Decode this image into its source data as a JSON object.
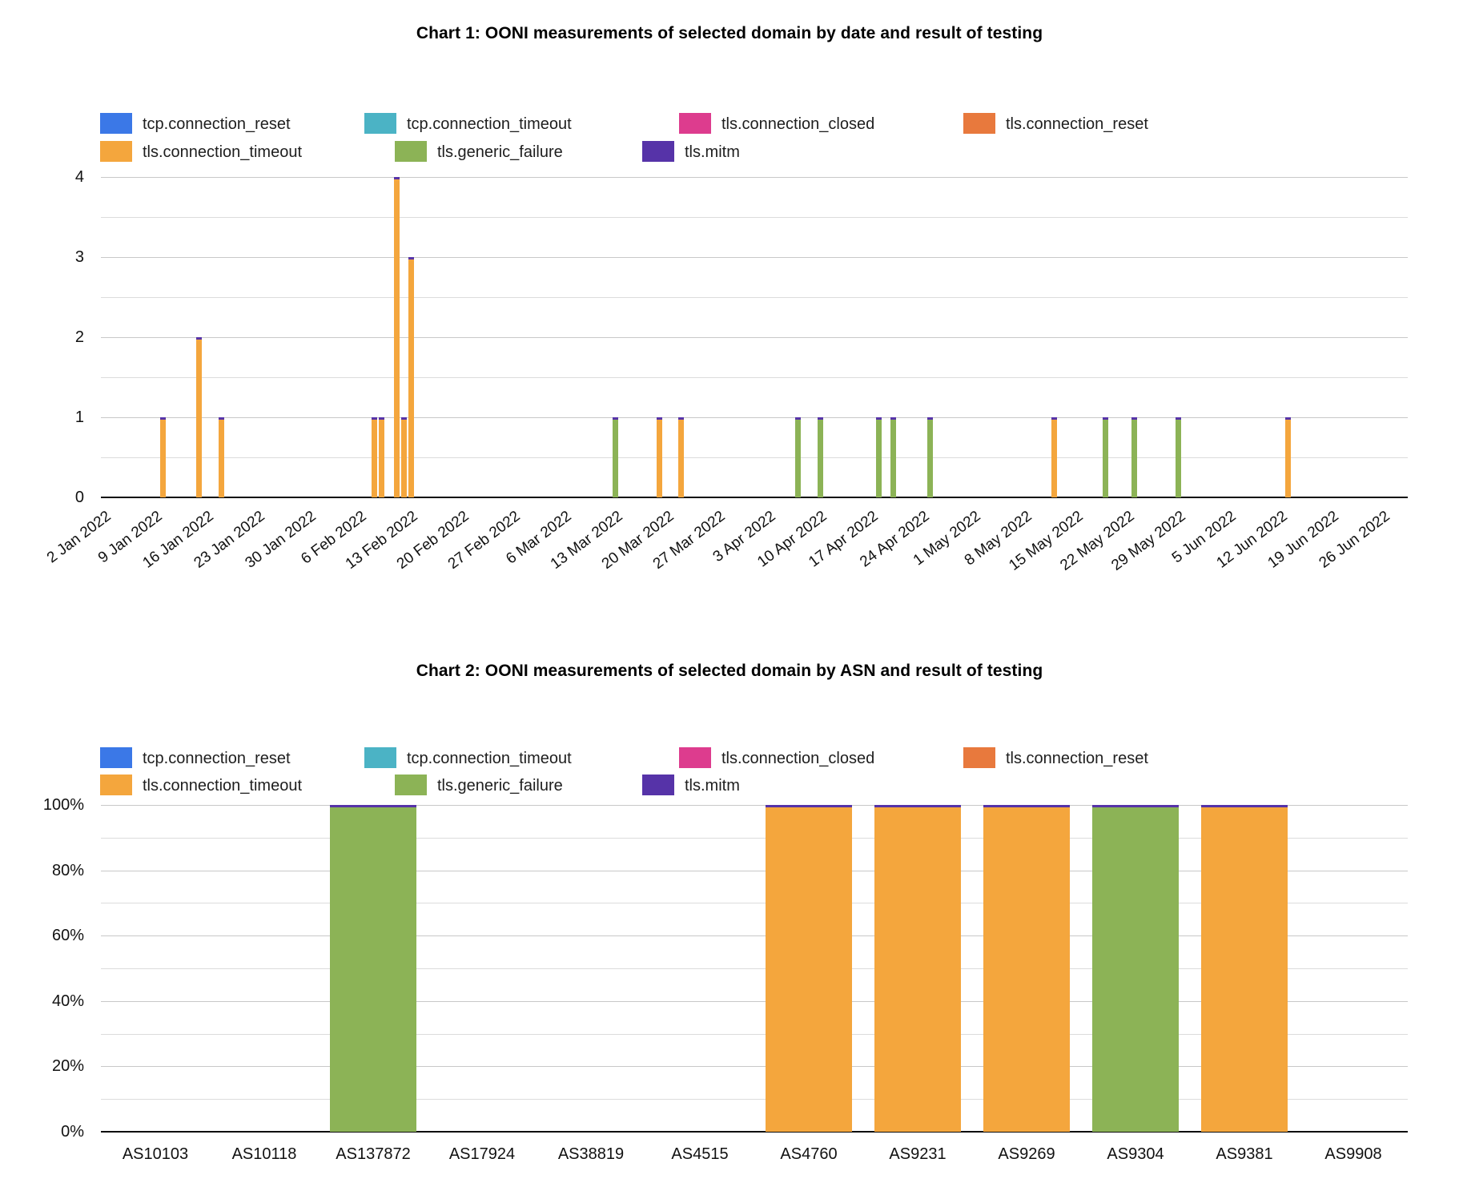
{
  "page_bg": "#ffffff",
  "palette": {
    "tcp.connection_reset": "#3B78E7",
    "tcp.connection_timeout": "#4BB3C5",
    "tls.connection_closed": "#DD3C8E",
    "tls.connection_reset": "#E8793D",
    "tls.connection_timeout": "#F4A63D",
    "tls.generic_failure": "#8CB356",
    "tls.mitm": "#5633A8"
  },
  "legend_rows": [
    [
      "tcp.connection_reset",
      "tcp.connection_timeout",
      "tls.connection_closed",
      "tls.connection_reset"
    ],
    [
      "tls.connection_timeout",
      "tls.generic_failure",
      "tls.mitm"
    ]
  ],
  "chart_data": [
    {
      "type": "bar",
      "stacked": true,
      "title": "Chart 1: OONI measurements of selected domain by date and result of testing",
      "legend_position": "top-left-two-rows",
      "grid": true,
      "x_axis": {
        "kind": "date",
        "start": "2022-01-02",
        "tick_interval_days": 7,
        "tick_labels": [
          "2 Jan 2022",
          "9 Jan 2022",
          "16 Jan 2022",
          "23 Jan 2022",
          "30 Jan 2022",
          "6 Feb 2022",
          "13 Feb 2022",
          "20 Feb 2022",
          "27 Feb 2022",
          "6 Mar 2022",
          "13 Mar 2022",
          "20 Mar 2022",
          "27 Mar 2022",
          "3 Apr 2022",
          "10 Apr 2022",
          "17 Apr 2022",
          "24 Apr 2022",
          "1 May 2022",
          "8 May 2022",
          "15 May 2022",
          "22 May 2022",
          "29 May 2022",
          "5 Jun 2022",
          "12 Jun 2022",
          "19 Jun 2022",
          "26 Jun 2022"
        ]
      },
      "y_axis": {
        "min": 0,
        "max": 4,
        "tick_labels": [
          "0",
          "1",
          "2",
          "3",
          "4"
        ],
        "minor_step": 0.5
      },
      "bars": [
        {
          "date": "2022-01-10",
          "series": "tls.connection_timeout",
          "value": 1
        },
        {
          "date": "2022-01-15",
          "series": "tls.connection_timeout",
          "value": 2
        },
        {
          "date": "2022-01-18",
          "series": "tls.connection_timeout",
          "value": 1
        },
        {
          "date": "2022-02-08",
          "series": "tls.connection_timeout",
          "value": 1
        },
        {
          "date": "2022-02-09",
          "series": "tls.connection_timeout",
          "value": 1
        },
        {
          "date": "2022-02-11",
          "series": "tls.connection_timeout",
          "value": 4
        },
        {
          "date": "2022-02-12",
          "series": "tls.connection_timeout",
          "value": 1
        },
        {
          "date": "2022-02-13",
          "series": "tls.connection_timeout",
          "value": 3
        },
        {
          "date": "2022-03-13",
          "series": "tls.generic_failure",
          "value": 1
        },
        {
          "date": "2022-03-19",
          "series": "tls.connection_timeout",
          "value": 1
        },
        {
          "date": "2022-03-22",
          "series": "tls.connection_timeout",
          "value": 1
        },
        {
          "date": "2022-04-07",
          "series": "tls.generic_failure",
          "value": 1
        },
        {
          "date": "2022-04-10",
          "series": "tls.generic_failure",
          "value": 1
        },
        {
          "date": "2022-04-18",
          "series": "tls.generic_failure",
          "value": 1
        },
        {
          "date": "2022-04-20",
          "series": "tls.generic_failure",
          "value": 1
        },
        {
          "date": "2022-04-25",
          "series": "tls.generic_failure",
          "value": 1
        },
        {
          "date": "2022-05-12",
          "series": "tls.connection_timeout",
          "value": 1
        },
        {
          "date": "2022-05-19",
          "series": "tls.generic_failure",
          "value": 1
        },
        {
          "date": "2022-05-23",
          "series": "tls.generic_failure",
          "value": 1
        },
        {
          "date": "2022-05-29",
          "series": "tls.generic_failure",
          "value": 1
        },
        {
          "date": "2022-06-13",
          "series": "tls.connection_timeout",
          "value": 1
        }
      ]
    },
    {
      "type": "bar",
      "stacked": "percent",
      "title": "Chart 2: OONI measurements of selected domain by ASN and result of testing",
      "legend_position": "top-left-two-rows",
      "grid": true,
      "categories": [
        "AS10103",
        "AS10118",
        "AS137872",
        "AS17924",
        "AS38819",
        "AS4515",
        "AS4760",
        "AS9231",
        "AS9269",
        "AS9304",
        "AS9381",
        "AS9908"
      ],
      "y_axis": {
        "tick_labels": [
          "0%",
          "20%",
          "40%",
          "60%",
          "80%",
          "100%"
        ],
        "minor_step_pct": 10
      },
      "bars": [
        {
          "category": "AS137872",
          "series": "tls.generic_failure",
          "value_pct": 100
        },
        {
          "category": "AS4760",
          "series": "tls.connection_timeout",
          "value_pct": 100
        },
        {
          "category": "AS9231",
          "series": "tls.connection_timeout",
          "value_pct": 100
        },
        {
          "category": "AS9269",
          "series": "tls.connection_timeout",
          "value_pct": 100
        },
        {
          "category": "AS9304",
          "series": "tls.generic_failure",
          "value_pct": 100
        },
        {
          "category": "AS9381",
          "series": "tls.connection_timeout",
          "value_pct": 100
        }
      ]
    }
  ]
}
